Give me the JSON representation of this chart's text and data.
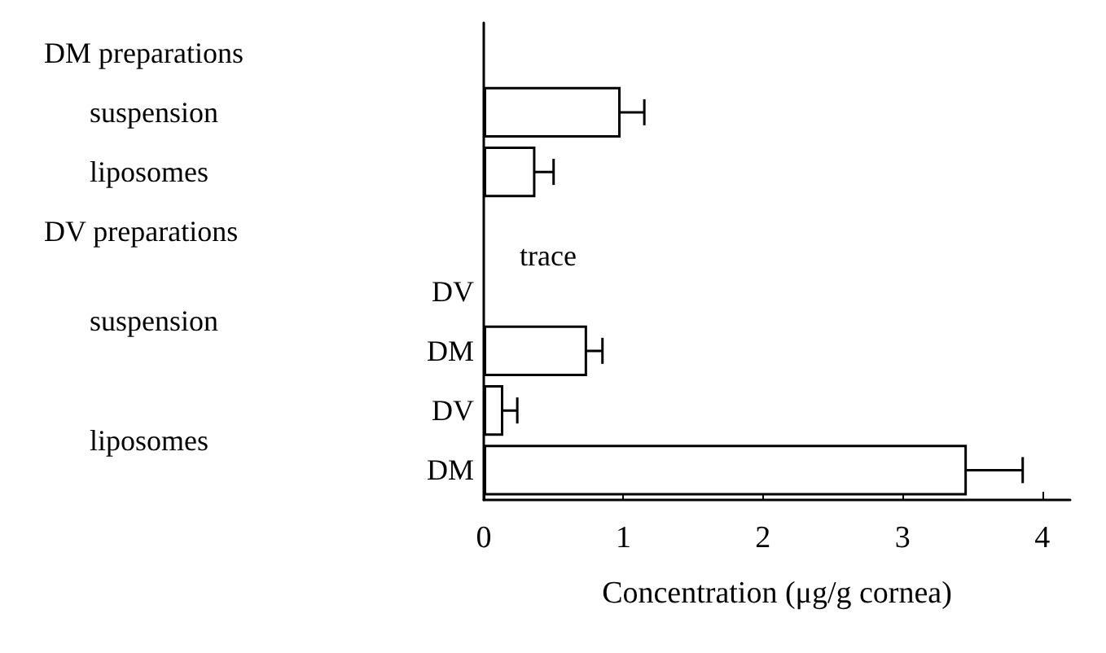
{
  "chart_data": {
    "type": "bar",
    "orientation": "horizontal",
    "xlabel": "Concentration (μg/g cornea)",
    "categories": [
      null,
      null,
      null,
      null,
      "DV",
      "DM",
      "DV",
      "DM"
    ],
    "values": [
      null,
      0.98,
      0.37,
      null,
      null,
      0.74,
      0.14,
      3.46
    ],
    "errors": [
      null,
      0.17,
      0.13,
      null,
      null,
      0.11,
      0.1,
      0.4
    ],
    "color": "#ffffff",
    "xlim": [
      0,
      4.2
    ],
    "xticks": [
      0,
      1,
      2,
      3,
      4
    ],
    "annotations": [
      "DM preparations",
      "suspension",
      "liposomes",
      "DV preparations",
      "suspension",
      "liposomes",
      "trace"
    ],
    "grid": false
  }
}
